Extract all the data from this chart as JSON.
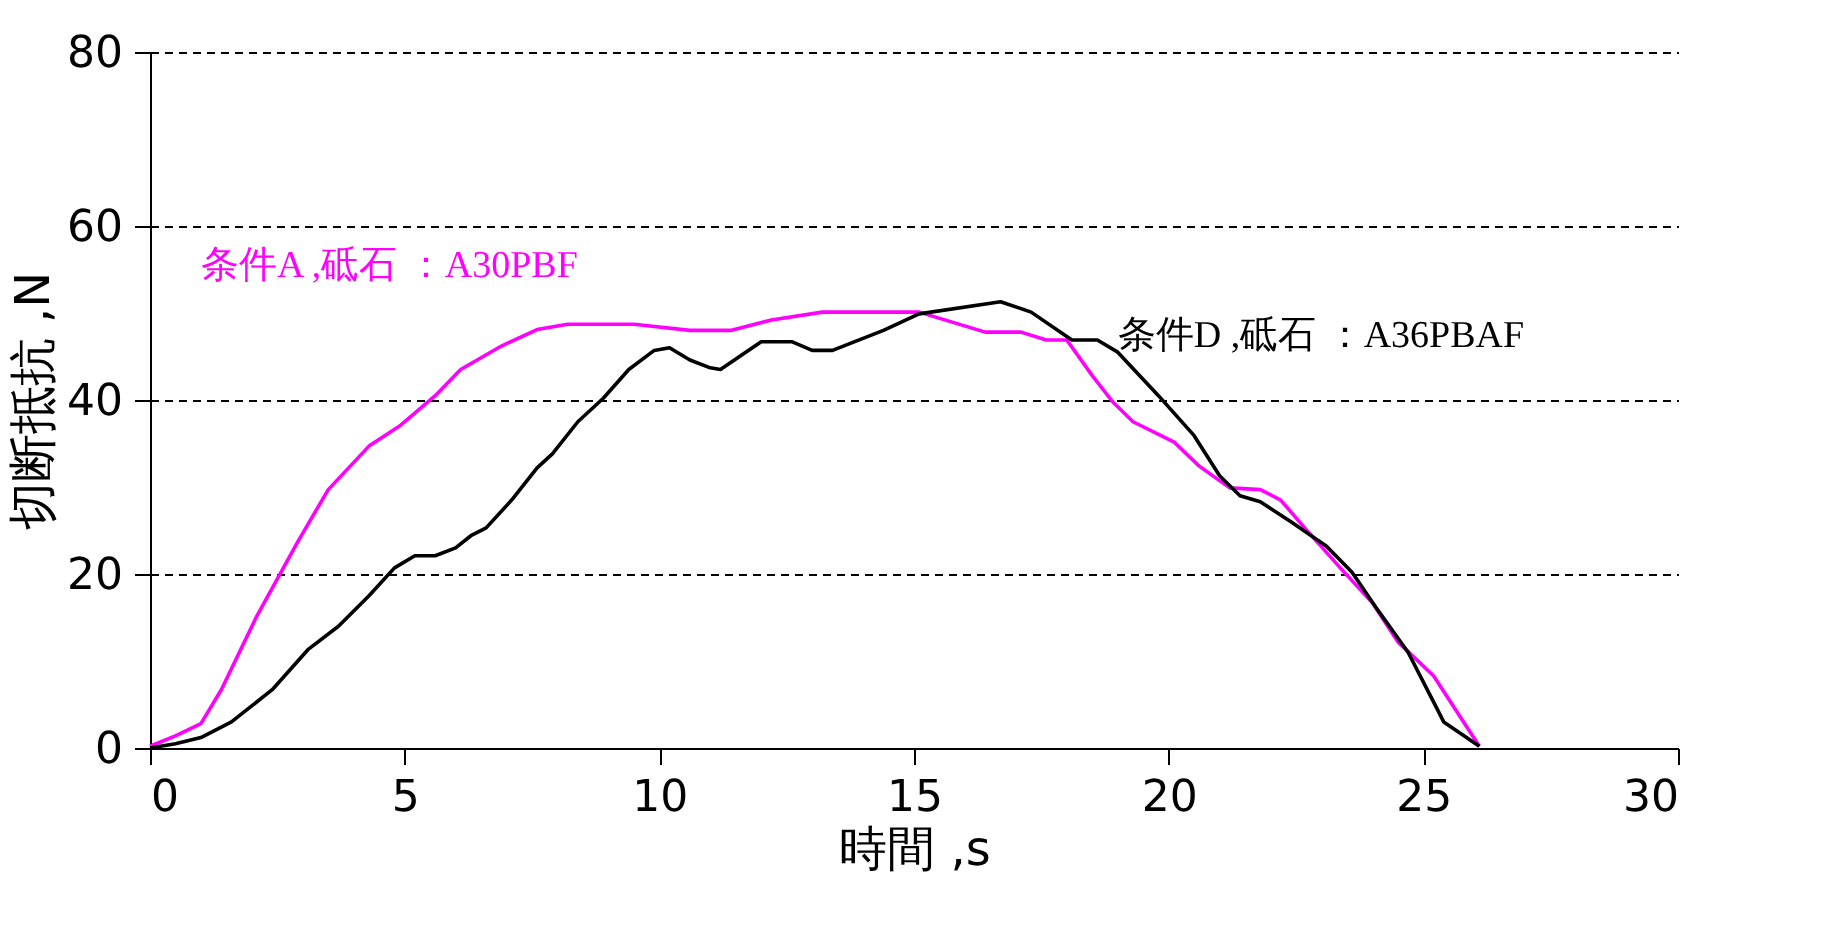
{
  "chart_data": {
    "type": "line",
    "xlabel": "時間 ,s",
    "ylabel": "切断抵抗 ,N",
    "xlim": [
      0,
      30
    ],
    "ylim": [
      0,
      80
    ],
    "xticks": [
      0,
      5,
      10,
      15,
      20,
      25,
      30
    ],
    "yticks": [
      0,
      20,
      40,
      60,
      80
    ],
    "grid": "y",
    "legend": false,
    "marker": "none",
    "line_style": "solid",
    "series": [
      {
        "name": "条件A ,砥石 ：A30PBF",
        "color": "#ff00ff",
        "x": [
          0,
          0.5,
          1.0,
          1.4,
          2.1,
          2.9,
          3.5,
          4.3,
          4.9,
          5.6,
          6.1,
          6.9,
          7.6,
          8.2,
          9.5,
          10.6,
          11.4,
          12.2,
          13.2,
          15.1,
          16.4,
          17.1,
          17.6,
          18.0,
          18.5,
          18.9,
          19.3,
          20.1,
          20.6,
          21.2,
          21.8,
          22.2,
          22.7,
          23.4,
          24.0,
          24.5,
          25.2,
          26.1
        ],
        "values": [
          0.2,
          1.4,
          2.8,
          6.7,
          15.2,
          23.7,
          29.7,
          34.7,
          37.0,
          40.5,
          43.5,
          46.2,
          48.1,
          48.7,
          48.7,
          48.0,
          48.0,
          49.2,
          50.1,
          50.1,
          47.8,
          47.8,
          46.9,
          46.9,
          42.8,
          39.8,
          37.5,
          35.2,
          32.4,
          29.9,
          29.7,
          28.5,
          25.1,
          20.5,
          16.7,
          12.2,
          8.3,
          0.2
        ]
      },
      {
        "name": "条件D ,砥石 ：A36PBAF",
        "color": "#000000",
        "x": [
          0,
          0.5,
          1.0,
          1.6,
          2.4,
          3.1,
          3.7,
          4.3,
          4.8,
          5.2,
          5.6,
          6.0,
          6.3,
          6.6,
          7.1,
          7.6,
          7.9,
          8.4,
          8.9,
          9.4,
          9.9,
          10.2,
          10.6,
          11.0,
          11.2,
          12.0,
          12.6,
          13.0,
          13.4,
          14.4,
          15.1,
          16.7,
          17.3,
          18.1,
          18.6,
          19.0,
          19.8,
          20.5,
          21.0,
          21.4,
          21.8,
          22.4,
          23.1,
          23.6,
          24.1,
          24.7,
          25.2,
          25.4,
          26.1
        ],
        "values": [
          0,
          0.5,
          1.2,
          3.0,
          6.7,
          11.3,
          14.0,
          17.5,
          20.7,
          22.1,
          22.1,
          23.0,
          24.4,
          25.3,
          28.5,
          32.2,
          33.8,
          37.5,
          40.2,
          43.5,
          45.7,
          46.0,
          44.6,
          43.7,
          43.5,
          46.7,
          46.7,
          45.7,
          45.7,
          48.0,
          49.9,
          51.3,
          50.1,
          46.9,
          46.9,
          45.5,
          40.5,
          35.9,
          31.3,
          29.0,
          28.3,
          26.0,
          23.2,
          20.2,
          15.9,
          11.0,
          5.3,
          3.0,
          0.2
        ]
      }
    ]
  }
}
